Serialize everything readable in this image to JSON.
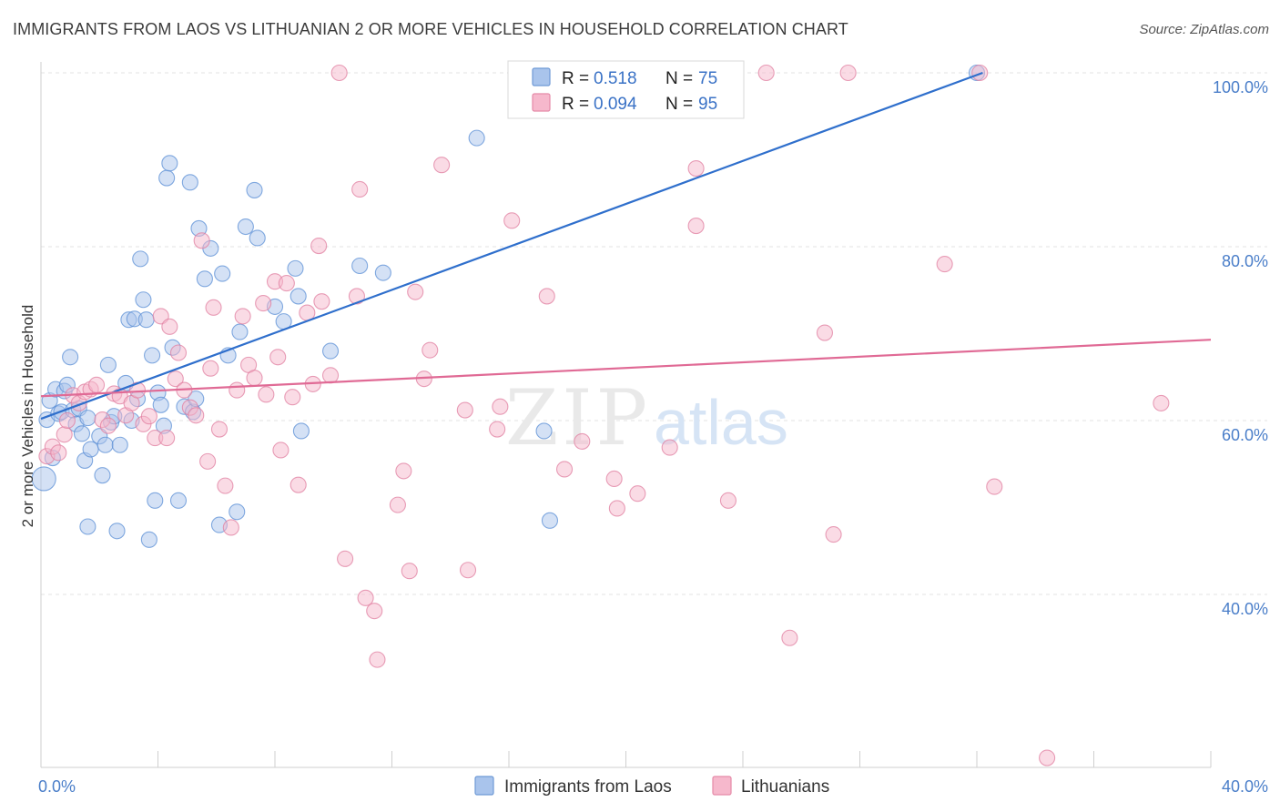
{
  "title": "IMMIGRANTS FROM LAOS VS LITHUANIAN 2 OR MORE VEHICLES IN HOUSEHOLD CORRELATION CHART",
  "source": "Source: ZipAtlas.com",
  "watermark": {
    "zip": "ZIP",
    "atlas": "atlas"
  },
  "chart_data": {
    "type": "scatter",
    "ylabel": "2 or more Vehicles in Household",
    "xlim": [
      0,
      40
    ],
    "ylim": [
      20,
      104
    ],
    "x_tick_labels": [
      {
        "value": 0,
        "label": "0.0%"
      },
      {
        "value": 40,
        "label": "40.0%"
      }
    ],
    "y_tick_labels": [
      {
        "value": 40,
        "label": "40.0%"
      },
      {
        "value": 60,
        "label": "60.0%"
      },
      {
        "value": 80,
        "label": "80.0%"
      },
      {
        "value": 100,
        "label": "100.0%"
      }
    ],
    "legend_box": [
      {
        "r_label": "R = ",
        "r_value": "0.518",
        "n_label": "N = ",
        "n_value": "75",
        "color": "#a9c4ec",
        "stroke": "#6f9ad6"
      },
      {
        "r_label": "R = ",
        "r_value": "0.094",
        "n_label": "N = ",
        "n_value": "95",
        "color": "#f6b8cc",
        "stroke": "#e58aa8"
      }
    ],
    "series": [
      {
        "name": "Immigrants from Laos",
        "color": "#a9c4ec",
        "stroke": "#5b8fd6",
        "trend_color": "#2f6fcc",
        "trend": [
          [
            0,
            60.2
          ],
          [
            32.2,
            100
          ]
        ],
        "points": [
          [
            0.1,
            53.3
          ],
          [
            0.2,
            60.1
          ],
          [
            0.3,
            62.3
          ],
          [
            0.4,
            55.7
          ],
          [
            0.5,
            63.6
          ],
          [
            0.6,
            60.8
          ],
          [
            0.7,
            61.0
          ],
          [
            0.8,
            63.4
          ],
          [
            0.9,
            64.1
          ],
          [
            1.0,
            67.3
          ],
          [
            1.1,
            61.2
          ],
          [
            1.2,
            59.6
          ],
          [
            1.3,
            61.4
          ],
          [
            1.4,
            58.5
          ],
          [
            1.5,
            55.4
          ],
          [
            1.6,
            60.3
          ],
          [
            1.6,
            47.8
          ],
          [
            1.7,
            56.7
          ],
          [
            2.0,
            58.2
          ],
          [
            2.1,
            53.7
          ],
          [
            2.2,
            57.2
          ],
          [
            2.3,
            66.4
          ],
          [
            2.4,
            59.8
          ],
          [
            2.5,
            60.5
          ],
          [
            2.6,
            47.3
          ],
          [
            2.7,
            57.2
          ],
          [
            2.9,
            64.3
          ],
          [
            3.0,
            71.6
          ],
          [
            3.1,
            60.0
          ],
          [
            3.2,
            71.7
          ],
          [
            3.3,
            62.5
          ],
          [
            3.4,
            78.6
          ],
          [
            3.5,
            73.9
          ],
          [
            3.6,
            71.6
          ],
          [
            3.7,
            46.3
          ],
          [
            3.8,
            67.5
          ],
          [
            3.9,
            50.8
          ],
          [
            4.0,
            63.2
          ],
          [
            4.1,
            61.8
          ],
          [
            4.2,
            59.4
          ],
          [
            4.3,
            87.9
          ],
          [
            4.4,
            89.6
          ],
          [
            4.5,
            68.4
          ],
          [
            4.7,
            50.8
          ],
          [
            4.9,
            61.6
          ],
          [
            5.1,
            87.4
          ],
          [
            5.2,
            61.0
          ],
          [
            5.3,
            62.5
          ],
          [
            5.4,
            82.1
          ],
          [
            5.6,
            76.3
          ],
          [
            5.8,
            79.8
          ],
          [
            6.1,
            48.0
          ],
          [
            6.2,
            76.9
          ],
          [
            6.4,
            67.5
          ],
          [
            6.7,
            49.5
          ],
          [
            6.8,
            70.2
          ],
          [
            7.0,
            82.3
          ],
          [
            7.3,
            86.5
          ],
          [
            7.4,
            81.0
          ],
          [
            8.0,
            73.1
          ],
          [
            8.3,
            71.4
          ],
          [
            8.7,
            77.5
          ],
          [
            8.8,
            74.3
          ],
          [
            8.9,
            58.8
          ],
          [
            9.9,
            68.0
          ],
          [
            10.9,
            77.8
          ],
          [
            11.7,
            77.0
          ],
          [
            14.9,
            92.5
          ],
          [
            17.2,
            58.8
          ],
          [
            17.4,
            48.5
          ],
          [
            32.0,
            100.0
          ]
        ]
      },
      {
        "name": "Lithuanians",
        "color": "#f6b8cc",
        "stroke": "#e07fa0",
        "trend_color": "#e06a95",
        "trend": [
          [
            0,
            62.8
          ],
          [
            40,
            69.3
          ]
        ],
        "points": [
          [
            0.2,
            55.9
          ],
          [
            0.4,
            57.0
          ],
          [
            0.6,
            56.3
          ],
          [
            0.8,
            58.4
          ],
          [
            0.9,
            60.0
          ],
          [
            1.1,
            62.9
          ],
          [
            1.3,
            62.0
          ],
          [
            1.5,
            63.3
          ],
          [
            1.7,
            63.6
          ],
          [
            1.9,
            64.1
          ],
          [
            2.1,
            60.1
          ],
          [
            2.3,
            59.4
          ],
          [
            2.5,
            63.1
          ],
          [
            2.7,
            62.8
          ],
          [
            2.9,
            60.6
          ],
          [
            3.1,
            62.0
          ],
          [
            3.3,
            63.5
          ],
          [
            3.5,
            59.6
          ],
          [
            3.7,
            60.5
          ],
          [
            3.9,
            58.0
          ],
          [
            4.1,
            72.0
          ],
          [
            4.3,
            58.0
          ],
          [
            4.4,
            70.8
          ],
          [
            4.6,
            64.8
          ],
          [
            4.7,
            67.8
          ],
          [
            4.9,
            63.5
          ],
          [
            5.1,
            61.5
          ],
          [
            5.3,
            60.6
          ],
          [
            5.5,
            80.7
          ],
          [
            5.7,
            55.3
          ],
          [
            5.8,
            66.0
          ],
          [
            5.9,
            73.0
          ],
          [
            6.1,
            59.0
          ],
          [
            6.3,
            52.5
          ],
          [
            6.5,
            47.7
          ],
          [
            6.7,
            63.5
          ],
          [
            6.9,
            72.0
          ],
          [
            7.1,
            66.4
          ],
          [
            7.3,
            64.9
          ],
          [
            7.6,
            73.5
          ],
          [
            7.7,
            63.0
          ],
          [
            8.0,
            76.0
          ],
          [
            8.1,
            67.3
          ],
          [
            8.2,
            56.6
          ],
          [
            8.4,
            75.8
          ],
          [
            8.6,
            62.7
          ],
          [
            8.8,
            52.6
          ],
          [
            9.1,
            72.4
          ],
          [
            9.3,
            64.2
          ],
          [
            9.5,
            80.1
          ],
          [
            9.6,
            73.7
          ],
          [
            9.9,
            65.2
          ],
          [
            10.2,
            100.0
          ],
          [
            10.4,
            44.1
          ],
          [
            10.8,
            74.3
          ],
          [
            10.9,
            86.6
          ],
          [
            11.1,
            39.6
          ],
          [
            11.4,
            38.1
          ],
          [
            11.5,
            32.5
          ],
          [
            12.2,
            50.3
          ],
          [
            12.4,
            54.2
          ],
          [
            12.6,
            42.7
          ],
          [
            12.8,
            74.8
          ],
          [
            13.1,
            64.8
          ],
          [
            13.3,
            68.1
          ],
          [
            13.7,
            89.4
          ],
          [
            14.5,
            61.2
          ],
          [
            14.6,
            42.8
          ],
          [
            15.6,
            59.0
          ],
          [
            15.7,
            61.6
          ],
          [
            16.1,
            83.0
          ],
          [
            17.3,
            74.3
          ],
          [
            17.9,
            54.4
          ],
          [
            18.5,
            57.6
          ],
          [
            19.6,
            53.3
          ],
          [
            19.7,
            49.9
          ],
          [
            20.4,
            51.6
          ],
          [
            21.5,
            56.9
          ],
          [
            22.4,
            89.0
          ],
          [
            22.4,
            82.4
          ],
          [
            23.5,
            50.8
          ],
          [
            24.8,
            100.0
          ],
          [
            25.6,
            35.0
          ],
          [
            26.8,
            70.1
          ],
          [
            27.1,
            46.9
          ],
          [
            27.6,
            100.0
          ],
          [
            30.9,
            78.0
          ],
          [
            32.1,
            100.0
          ],
          [
            32.6,
            52.4
          ],
          [
            34.4,
            21.2
          ],
          [
            38.3,
            62.0
          ]
        ]
      }
    ],
    "grid": true
  }
}
